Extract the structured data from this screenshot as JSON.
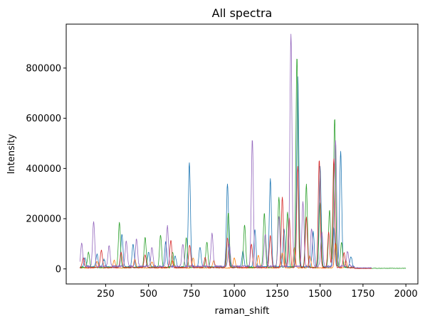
{
  "chart_data": {
    "type": "line",
    "title": "All spectra",
    "xlabel": "raman_shift",
    "ylabel": "Intensity",
    "xlim": [
      20,
      2070
    ],
    "ylim": [
      -60000,
      975000
    ],
    "x_ticks": [
      250,
      500,
      750,
      1000,
      1250,
      1500,
      1750,
      2000
    ],
    "x_tick_labels": [
      "250",
      "500",
      "750",
      "1000",
      "1250",
      "1500",
      "1750",
      "2000"
    ],
    "y_ticks": [
      0,
      200000,
      400000,
      600000,
      800000
    ],
    "y_tick_labels": [
      "0",
      "200000",
      "400000",
      "600000",
      "800000"
    ],
    "grid": false,
    "legend": "none",
    "series": [
      {
        "color": "#1f77b4",
        "x_range": [
          100,
          1800
        ],
        "baseline": 8000,
        "peaks": [
          [
            130,
            35000
          ],
          [
            200,
            50000
          ],
          [
            240,
            30000
          ],
          [
            345,
            130000
          ],
          [
            410,
            90000
          ],
          [
            500,
            60000
          ],
          [
            600,
            100000
          ],
          [
            655,
            45000
          ],
          [
            738,
            415000
          ],
          [
            800,
            80000
          ],
          [
            960,
            330000
          ],
          [
            1050,
            60000
          ],
          [
            1120,
            150000
          ],
          [
            1210,
            350000
          ],
          [
            1290,
            150000
          ],
          [
            1370,
            760000
          ],
          [
            1460,
            140000
          ],
          [
            1500,
            400000
          ],
          [
            1580,
            160000
          ],
          [
            1620,
            460000
          ],
          [
            1680,
            40000
          ]
        ]
      },
      {
        "color": "#ff7f0e",
        "x_range": [
          100,
          1800
        ],
        "baseline": 4000,
        "peaks": [
          [
            200,
            25000
          ],
          [
            300,
            30000
          ],
          [
            420,
            35000
          ],
          [
            520,
            25000
          ],
          [
            640,
            30000
          ],
          [
            760,
            40000
          ],
          [
            880,
            30000
          ],
          [
            1000,
            40000
          ],
          [
            1140,
            50000
          ],
          [
            1280,
            60000
          ],
          [
            1350,
            80000
          ],
          [
            1440,
            50000
          ],
          [
            1590,
            100000
          ],
          [
            1650,
            30000
          ]
        ]
      },
      {
        "color": "#2ca02c",
        "x_range": [
          100,
          2000
        ],
        "baseline": 6000,
        "peaks": [
          [
            150,
            60000
          ],
          [
            330,
            180000
          ],
          [
            480,
            120000
          ],
          [
            570,
            130000
          ],
          [
            640,
            60000
          ],
          [
            720,
            120000
          ],
          [
            840,
            100000
          ],
          [
            965,
            220000
          ],
          [
            1060,
            170000
          ],
          [
            1175,
            215000
          ],
          [
            1260,
            280000
          ],
          [
            1310,
            220000
          ],
          [
            1365,
            840000
          ],
          [
            1420,
            330000
          ],
          [
            1500,
            260000
          ],
          [
            1555,
            230000
          ],
          [
            1585,
            595000
          ],
          [
            1625,
            100000
          ]
        ]
      },
      {
        "color": "#d62728",
        "x_range": [
          100,
          1800
        ],
        "baseline": 5000,
        "peaks": [
          [
            120,
            40000
          ],
          [
            225,
            70000
          ],
          [
            340,
            60000
          ],
          [
            480,
            50000
          ],
          [
            630,
            110000
          ],
          [
            740,
            90000
          ],
          [
            830,
            40000
          ],
          [
            960,
            120000
          ],
          [
            1100,
            95000
          ],
          [
            1210,
            130000
          ],
          [
            1280,
            280000
          ],
          [
            1320,
            200000
          ],
          [
            1370,
            405000
          ],
          [
            1420,
            200000
          ],
          [
            1495,
            430000
          ],
          [
            1550,
            140000
          ],
          [
            1580,
            435000
          ],
          [
            1640,
            60000
          ]
        ]
      },
      {
        "color": "#9467bd",
        "x_range": [
          100,
          1800
        ],
        "baseline": 10000,
        "peaks": [
          [
            110,
            90000
          ],
          [
            180,
            180000
          ],
          [
            270,
            85000
          ],
          [
            370,
            100000
          ],
          [
            430,
            110000
          ],
          [
            520,
            75000
          ],
          [
            610,
            160000
          ],
          [
            700,
            90000
          ],
          [
            870,
            130000
          ],
          [
            970,
            90000
          ],
          [
            1105,
            505000
          ],
          [
            1180,
            130000
          ],
          [
            1260,
            200000
          ],
          [
            1330,
            925000
          ],
          [
            1400,
            260000
          ],
          [
            1450,
            150000
          ],
          [
            1510,
            140000
          ],
          [
            1590,
            505000
          ],
          [
            1660,
            60000
          ]
        ]
      }
    ]
  }
}
